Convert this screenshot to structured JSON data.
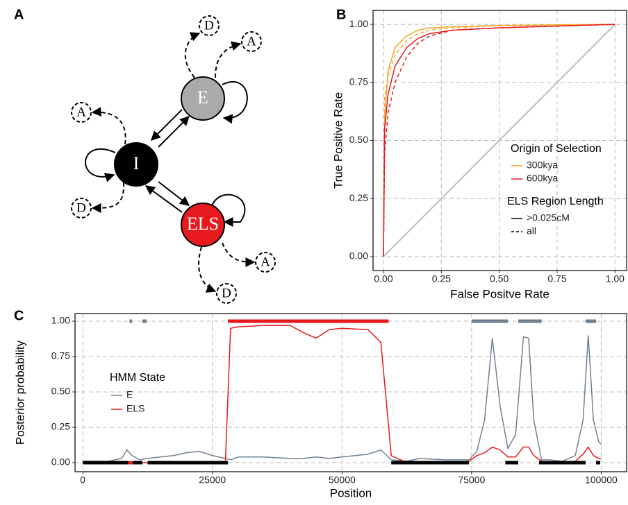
{
  "panel_labels": [
    "A",
    "B",
    "C"
  ],
  "diagram": {
    "nodes": [
      {
        "label": "E"
      },
      {
        "label": "I"
      },
      {
        "label": "ELS"
      },
      {
        "label": "D"
      },
      {
        "label": "A"
      },
      {
        "label": "A"
      },
      {
        "label": "D"
      },
      {
        "label": "A"
      },
      {
        "label": "D"
      }
    ]
  },
  "chart_data": [
    {
      "type": "line",
      "x_label": "False Positve Rate",
      "y_label": "True Positive Rate",
      "xlim": [
        -0.045,
        1.05
      ],
      "ylim": [
        -0.06,
        1.06
      ],
      "xticks": [
        {
          "value": 0,
          "label": "0.00"
        },
        {
          "value": 0.25,
          "label": "0.25"
        },
        {
          "value": 0.5,
          "label": "0.50"
        },
        {
          "value": 0.75,
          "label": "0.75"
        },
        {
          "value": 1,
          "label": "1.00"
        }
      ],
      "yticks": [
        {
          "value": 0,
          "label": "0.00"
        },
        {
          "value": 0.25,
          "label": "0.25"
        },
        {
          "value": 0.5,
          "label": "0.50"
        },
        {
          "value": 0.75,
          "label": "0.75"
        },
        {
          "value": 1,
          "label": "1.00"
        }
      ],
      "grid": true,
      "legends": [
        {
          "title": "Origin of Selection",
          "entries": [
            {
              "label": "300kya",
              "color": "#f5a623"
            },
            {
              "label": "600kya",
              "color": "#e8191e"
            }
          ]
        },
        {
          "title": "ELS Region Length",
          "entries": [
            {
              "label": ">0.025cM",
              "dash": "solid"
            },
            {
              "label": "all",
              "dash": "dashed"
            }
          ]
        }
      ],
      "series": [
        {
          "color": "#bdbdbd",
          "dash": "solid",
          "x": [
            0,
            1
          ],
          "values": [
            0,
            1
          ]
        },
        {
          "color": "#f5a623",
          "dash": "solid",
          "x": [
            0,
            0.005,
            0.02,
            0.05,
            0.1,
            0.15,
            0.2,
            0.3,
            0.5,
            1
          ],
          "values": [
            0,
            0.6,
            0.8,
            0.9,
            0.95,
            0.975,
            0.985,
            0.99,
            0.995,
            1
          ]
        },
        {
          "color": "#f5a623",
          "dash": "dashed",
          "x": [
            0,
            0.005,
            0.02,
            0.05,
            0.1,
            0.15,
            0.2,
            0.3,
            0.5,
            1
          ],
          "values": [
            0,
            0.68,
            0.78,
            0.87,
            0.93,
            0.96,
            0.975,
            0.985,
            0.995,
            1
          ]
        },
        {
          "color": "#e8191e",
          "dash": "solid",
          "x": [
            0,
            0.005,
            0.02,
            0.05,
            0.1,
            0.15,
            0.2,
            0.3,
            0.5,
            1
          ],
          "values": [
            0,
            0.55,
            0.7,
            0.82,
            0.9,
            0.94,
            0.96,
            0.975,
            0.985,
            1
          ]
        },
        {
          "color": "#e8191e",
          "dash": "dashed",
          "x": [
            0,
            0.005,
            0.02,
            0.05,
            0.1,
            0.15,
            0.2,
            0.3,
            0.5,
            1
          ],
          "values": [
            0,
            0.45,
            0.62,
            0.75,
            0.86,
            0.92,
            0.95,
            0.975,
            0.985,
            1
          ]
        }
      ]
    },
    {
      "type": "line",
      "x_label": "Position",
      "y_label": "Posterior probability",
      "xlim": [
        -1500,
        104900
      ],
      "ylim": [
        -0.064,
        1.054
      ],
      "xticks": [
        0,
        25000,
        50000,
        75000,
        100000
      ],
      "yticks": [
        {
          "value": 0,
          "label": "0.00"
        },
        {
          "value": 0.25,
          "label": "0.25"
        },
        {
          "value": 0.5,
          "label": "0.50"
        },
        {
          "value": 0.75,
          "label": "0.75"
        },
        {
          "value": 1,
          "label": "1.00"
        }
      ],
      "grid": true,
      "legend_title": "HMM State",
      "x": [
        0,
        2500,
        5000,
        7500,
        8500,
        9500,
        11000,
        12500,
        15000,
        17500,
        20000,
        22500,
        25000,
        27500,
        28500,
        30000,
        35000,
        40000,
        42500,
        45000,
        47500,
        50000,
        55000,
        57500,
        59500,
        62500,
        65000,
        70000,
        74500,
        76000,
        77500,
        79000,
        80500,
        82000,
        83500,
        85000,
        86000,
        87000,
        88500,
        90000,
        92500,
        95000,
        96500,
        97500,
        98500,
        99500,
        100000
      ],
      "series": [
        {
          "name": "E",
          "color": "#708090",
          "values": [
            0.01,
            0.01,
            0.01,
            0.03,
            0.09,
            0.05,
            0.02,
            0.03,
            0.04,
            0.05,
            0.07,
            0.08,
            0.05,
            0.03,
            0.02,
            0.04,
            0.04,
            0.03,
            0.03,
            0.04,
            0.03,
            0.04,
            0.06,
            0.09,
            0.02,
            0.01,
            0.03,
            0.02,
            0.02,
            0.08,
            0.3,
            0.88,
            0.4,
            0.1,
            0.2,
            0.89,
            0.88,
            0.3,
            0.02,
            0.02,
            0.01,
            0.05,
            0.3,
            0.9,
            0.3,
            0.15,
            0.13
          ]
        },
        {
          "name": "ELS",
          "color": "#e8191e",
          "values": [
            0,
            0,
            0,
            0,
            0,
            0,
            0,
            0,
            0,
            0,
            0,
            0,
            0,
            0,
            0.95,
            0.96,
            0.97,
            0.97,
            0.92,
            0.88,
            0.94,
            0.95,
            0.94,
            0.85,
            0.05,
            0,
            0,
            0,
            0.01,
            0.05,
            0.07,
            0.11,
            0.09,
            0.04,
            0.04,
            0.11,
            0.11,
            0.05,
            0.01,
            0,
            0,
            0.01,
            0.06,
            0.11,
            0.05,
            0.03,
            0.03
          ]
        }
      ],
      "state_calls": {
        "top": [
          {
            "start": 9000,
            "end": 9500,
            "color": "#708090"
          },
          {
            "start": 11500,
            "end": 12300,
            "color": "#708090"
          },
          {
            "start": 28000,
            "end": 59000,
            "color": "#e8191e"
          },
          {
            "start": 75000,
            "end": 82000,
            "color": "#708090"
          },
          {
            "start": 84000,
            "end": 88500,
            "color": "#708090"
          },
          {
            "start": 97000,
            "end": 99000,
            "color": "#708090"
          }
        ],
        "bottom": [
          {
            "start": 0,
            "end": 8800,
            "color": "#000000"
          },
          {
            "start": 8800,
            "end": 9600,
            "color": "#e8191e"
          },
          {
            "start": 9600,
            "end": 11500,
            "color": "#000000"
          },
          {
            "start": 12500,
            "end": 28000,
            "color": "#000000"
          },
          {
            "start": 59500,
            "end": 74500,
            "color": "#000000"
          },
          {
            "start": 81500,
            "end": 84000,
            "color": "#000000"
          },
          {
            "start": 88000,
            "end": 97000,
            "color": "#000000"
          },
          {
            "start": 99000,
            "end": 99800,
            "color": "#000000"
          }
        ]
      }
    }
  ]
}
